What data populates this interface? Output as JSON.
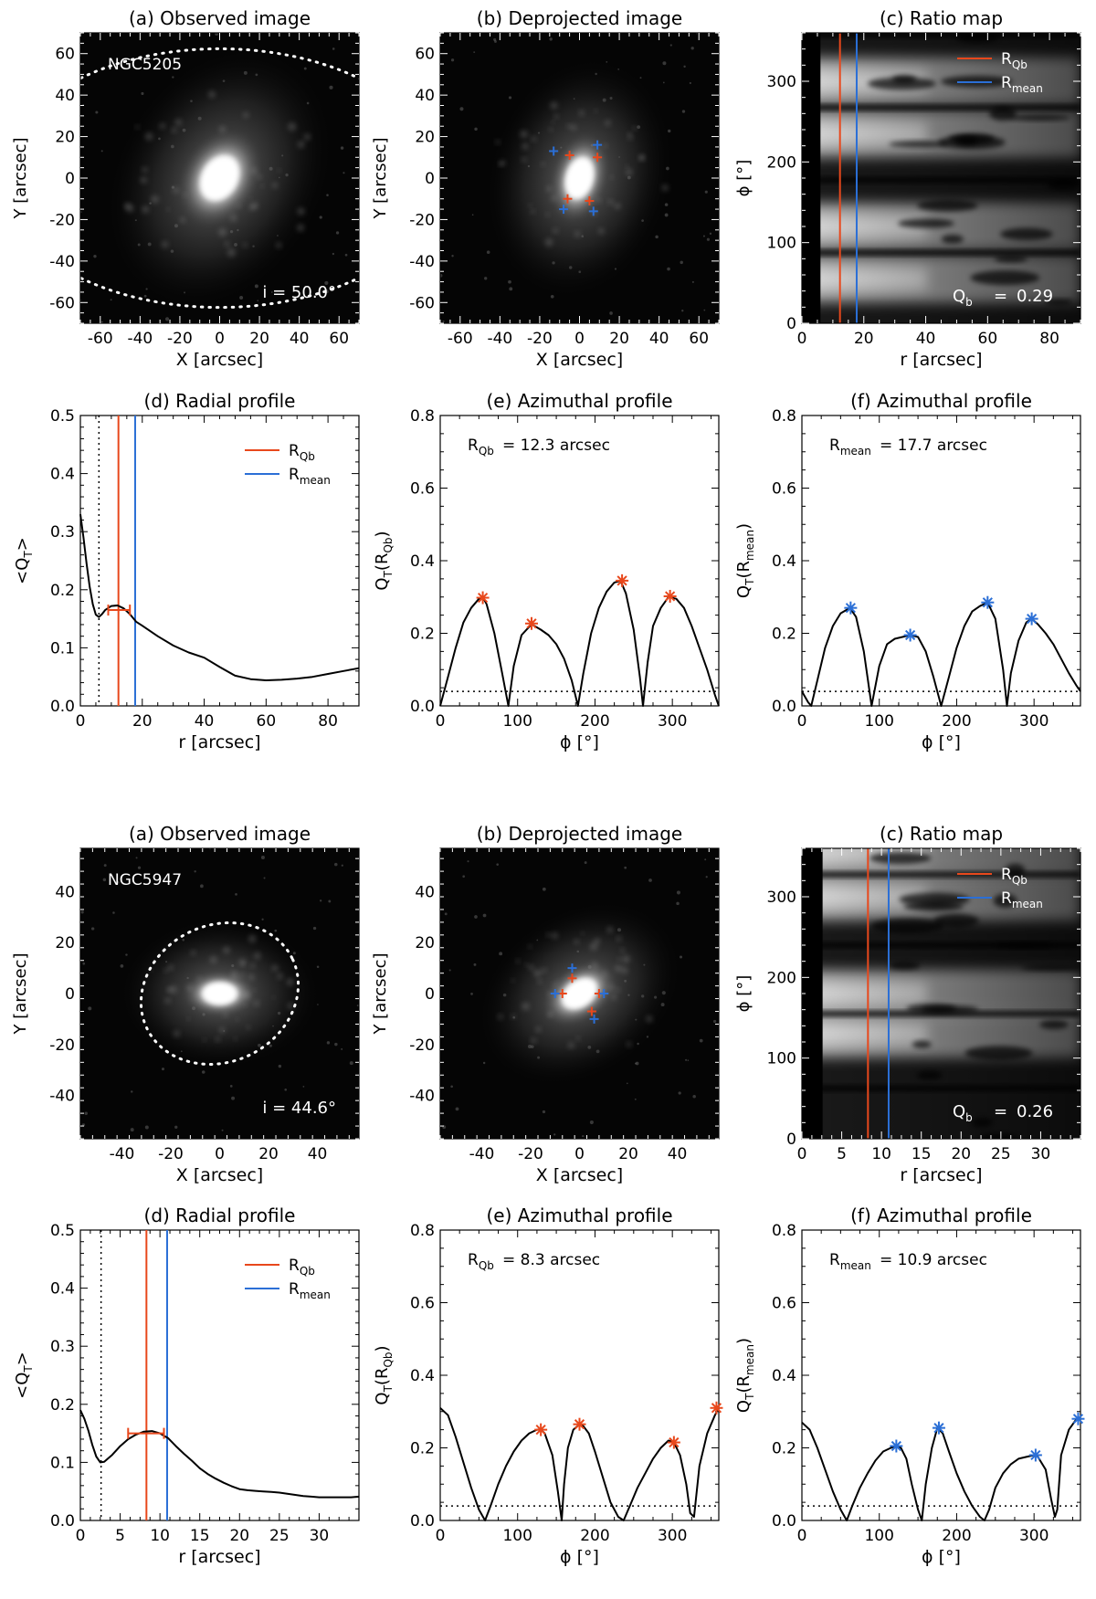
{
  "axis_labels": {
    "x_arcsec": "X [arcsec]",
    "y_arcsec": "Y [arcsec]",
    "r_arcsec": "r [arcsec]",
    "phi_deg": "ϕ [°]",
    "phi": "ϕ",
    "deg_bracket": "[°]",
    "qt_mean": "<Q_T>",
    "qt_rqb": "Q_T(R_Qb)",
    "qt_rmean": "Q_T(R_mean)"
  },
  "legend": {
    "rqb": "R_Qb",
    "rmean": "R_mean"
  },
  "colors": {
    "rqb": "#e8481c",
    "rmean": "#2b6fd6"
  },
  "chart_data": [
    {
      "group": 0,
      "galaxy": "NGC5205",
      "inclination_text": "i =  50.0°",
      "panels": {
        "a": {
          "type": "image",
          "title": "(a) Observed image",
          "xlim": [
            -70,
            70
          ],
          "ylim": [
            -70,
            70
          ],
          "xticks": [
            -60,
            -40,
            -20,
            0,
            20,
            40,
            60
          ],
          "yticks": [
            -60,
            -40,
            -20,
            0,
            20,
            40,
            60
          ],
          "ellipse": {
            "a": 110,
            "b": 65,
            "angle": 0
          },
          "galaxy_shape": {
            "size": 34,
            "elong": 1.35,
            "angle": -60
          }
        },
        "b": {
          "type": "image",
          "title": "(b) Deprojected image",
          "xlim": [
            -70,
            70
          ],
          "ylim": [
            -70,
            70
          ],
          "xticks": [
            -60,
            -40,
            -20,
            0,
            20,
            40,
            60
          ],
          "yticks": [
            -60,
            -40,
            -20,
            0,
            20,
            40,
            60
          ],
          "galaxy_shape": {
            "size": 30,
            "elong": 1.6,
            "angle": -75
          },
          "markers_rqb": [
            [
              -5,
              11
            ],
            [
              9,
              10
            ],
            [
              -6,
              -10
            ],
            [
              5,
              -11
            ]
          ],
          "markers_rmean": [
            [
              -13,
              13
            ],
            [
              9,
              16
            ],
            [
              -8,
              -15
            ],
            [
              7,
              -16
            ]
          ]
        },
        "c": {
          "type": "heatmap",
          "title": "(c) Ratio map",
          "xlim": [
            0,
            90
          ],
          "ylim": [
            0,
            360
          ],
          "xticks": [
            0,
            20,
            40,
            60,
            80
          ],
          "yticks": [
            0,
            100,
            200,
            300
          ],
          "mask_rmax": 6,
          "qb_label": "Q_b",
          "qb_value": "0.29",
          "rqb": 12.3,
          "rmean": 17.7,
          "bright_bands": [
            55,
            120,
            235,
            300
          ]
        },
        "d": {
          "type": "line",
          "title": "(d) Radial profile",
          "xlim": [
            0,
            90
          ],
          "ylim": [
            0,
            0.5
          ],
          "xticks": [
            0,
            20,
            40,
            60,
            80
          ],
          "yticks": [
            0.0,
            0.1,
            0.2,
            0.3,
            0.4,
            0.5
          ],
          "x": [
            0,
            1,
            2,
            3,
            4,
            5,
            6,
            7,
            8,
            10,
            12,
            14,
            16,
            18,
            20,
            25,
            30,
            35,
            40,
            45,
            50,
            55,
            60,
            65,
            70,
            75,
            80,
            85,
            90
          ],
          "y": [
            0.33,
            0.29,
            0.245,
            0.205,
            0.175,
            0.157,
            0.153,
            0.158,
            0.165,
            0.172,
            0.173,
            0.168,
            0.158,
            0.145,
            0.138,
            0.12,
            0.104,
            0.092,
            0.083,
            0.067,
            0.052,
            0.046,
            0.044,
            0.045,
            0.047,
            0.05,
            0.055,
            0.06,
            0.065
          ],
          "dotted_x": 6,
          "rqb": 12.3,
          "rmean": 17.7,
          "errorbar": {
            "center": 12.3,
            "lo": 9,
            "hi": 16,
            "y": 0.165
          }
        },
        "e": {
          "type": "line",
          "title": "(e) Azimuthal profile",
          "annotation_label": "R_Qb",
          "annotation_value": "= 12.3 arcsec",
          "xlim": [
            0,
            360
          ],
          "ylim": [
            0,
            0.8
          ],
          "xticks": [
            0,
            100,
            200,
            300
          ],
          "yticks": [
            0.0,
            0.2,
            0.4,
            0.6,
            0.8
          ],
          "threshold": 0.04,
          "x": [
            0,
            10,
            20,
            30,
            40,
            50,
            55,
            60,
            70,
            80,
            88,
            95,
            105,
            118,
            130,
            140,
            150,
            160,
            170,
            178,
            185,
            195,
            205,
            215,
            225,
            233,
            240,
            250,
            258,
            262,
            268,
            275,
            285,
            295,
            305,
            315,
            325,
            335,
            345,
            355,
            360
          ],
          "y": [
            0.0,
            0.08,
            0.16,
            0.23,
            0.27,
            0.295,
            0.3,
            0.28,
            0.2,
            0.09,
            0.0,
            0.11,
            0.195,
            0.225,
            0.21,
            0.195,
            0.17,
            0.13,
            0.07,
            0.0,
            0.09,
            0.2,
            0.27,
            0.315,
            0.34,
            0.345,
            0.31,
            0.21,
            0.08,
            0.0,
            0.12,
            0.22,
            0.27,
            0.3,
            0.295,
            0.27,
            0.22,
            0.16,
            0.1,
            0.03,
            0.0
          ],
          "peaks": [
            [
              55,
              0.298
            ],
            [
              118,
              0.227
            ],
            [
              235,
              0.345
            ],
            [
              297,
              0.302
            ]
          ],
          "marker_color": "rqb"
        },
        "f": {
          "type": "line",
          "title": "(f) Azimuthal profile",
          "annotation_label": "R_mean",
          "annotation_value": "= 17.7 arcsec",
          "xlim": [
            0,
            360
          ],
          "ylim": [
            0,
            0.8
          ],
          "xticks": [
            0,
            100,
            200,
            300
          ],
          "yticks": [
            0.0,
            0.2,
            0.4,
            0.6,
            0.8
          ],
          "threshold": 0.04,
          "x": [
            0,
            8,
            12,
            20,
            30,
            40,
            50,
            62,
            70,
            80,
            90,
            100,
            110,
            120,
            130,
            140,
            150,
            160,
            170,
            180,
            190,
            200,
            210,
            220,
            230,
            240,
            250,
            260,
            265,
            270,
            280,
            290,
            297,
            305,
            315,
            325,
            335,
            345,
            355,
            360
          ],
          "y": [
            0.04,
            0.01,
            0.0,
            0.07,
            0.16,
            0.22,
            0.255,
            0.27,
            0.245,
            0.15,
            0.0,
            0.11,
            0.17,
            0.185,
            0.19,
            0.195,
            0.19,
            0.15,
            0.08,
            0.0,
            0.08,
            0.16,
            0.22,
            0.26,
            0.275,
            0.285,
            0.24,
            0.1,
            0.0,
            0.09,
            0.18,
            0.23,
            0.24,
            0.225,
            0.2,
            0.17,
            0.13,
            0.09,
            0.055,
            0.04
          ],
          "peaks": [
            [
              63,
              0.27
            ],
            [
              140,
              0.195
            ],
            [
              240,
              0.285
            ],
            [
              297,
              0.24
            ]
          ],
          "marker_color": "rmean"
        }
      }
    },
    {
      "group": 1,
      "galaxy": "NGC5947",
      "inclination_text": "i =  44.6°",
      "panels": {
        "a": {
          "type": "image",
          "title": "(a) Observed image",
          "xlim": [
            -57,
            57
          ],
          "ylim": [
            -57,
            57
          ],
          "xticks": [
            -40,
            -20,
            0,
            20,
            40
          ],
          "yticks": [
            -40,
            -20,
            0,
            20,
            40
          ],
          "ellipse": {
            "a": 33,
            "b": 28,
            "angle": 25
          },
          "galaxy_shape": {
            "size": 20,
            "elong": 1.6,
            "angle": 0
          }
        },
        "b": {
          "type": "image",
          "title": "(b) Deprojected image",
          "xlim": [
            -57,
            57
          ],
          "ylim": [
            -57,
            57
          ],
          "xticks": [
            -40,
            -20,
            0,
            20,
            40
          ],
          "yticks": [
            -40,
            -20,
            0,
            20,
            40
          ],
          "galaxy_shape": {
            "size": 22,
            "elong": 1.5,
            "angle": -35
          },
          "markers_rqb": [
            [
              -3,
              6
            ],
            [
              8,
              0
            ],
            [
              -7,
              0
            ],
            [
              5,
              -7
            ]
          ],
          "markers_rmean": [
            [
              -3,
              10
            ],
            [
              10,
              0
            ],
            [
              -10,
              0
            ],
            [
              6,
              -10
            ]
          ]
        },
        "c": {
          "type": "heatmap",
          "title": "(c) Ratio map",
          "xlim": [
            0,
            35
          ],
          "ylim": [
            0,
            360
          ],
          "xticks": [
            0,
            5,
            10,
            15,
            20,
            25,
            30
          ],
          "yticks": [
            0,
            100,
            200,
            300
          ],
          "mask_rmax": 2.6,
          "qb_label": "Q_b",
          "qb_value": "0.26",
          "rqb": 8.3,
          "rmean": 10.9,
          "bright_bands": [
            130,
            180,
            300,
            355
          ]
        },
        "d": {
          "type": "line",
          "title": "(d) Radial profile",
          "xlim": [
            0,
            35
          ],
          "ylim": [
            0,
            0.5
          ],
          "xticks": [
            0,
            5,
            10,
            15,
            20,
            25,
            30
          ],
          "yticks": [
            0.0,
            0.1,
            0.2,
            0.3,
            0.4,
            0.5
          ],
          "x": [
            0,
            0.5,
            1,
            1.5,
            2,
            2.5,
            3,
            4,
            5,
            6,
            7,
            8,
            9,
            10,
            11,
            12,
            13,
            14,
            15,
            16,
            17,
            18,
            19,
            20,
            21,
            22,
            23,
            24,
            25,
            26,
            27,
            28,
            29,
            30,
            31,
            32,
            33,
            34,
            35
          ],
          "y": [
            0.19,
            0.175,
            0.155,
            0.13,
            0.11,
            0.1,
            0.101,
            0.113,
            0.128,
            0.14,
            0.148,
            0.153,
            0.154,
            0.15,
            0.142,
            0.128,
            0.115,
            0.103,
            0.09,
            0.08,
            0.072,
            0.065,
            0.059,
            0.054,
            0.052,
            0.051,
            0.05,
            0.049,
            0.048,
            0.046,
            0.044,
            0.042,
            0.041,
            0.04,
            0.04,
            0.04,
            0.04,
            0.04,
            0.041
          ],
          "dotted_x": 2.6,
          "rqb": 8.3,
          "rmean": 10.9,
          "errorbar": {
            "center": 8.3,
            "lo": 6,
            "hi": 10.5,
            "y": 0.15
          }
        },
        "e": {
          "type": "line",
          "title": "(e) Azimuthal profile",
          "annotation_label": "R_Qb",
          "annotation_value": "=  8.3 arcsec",
          "xlim": [
            0,
            360
          ],
          "ylim": [
            0,
            0.8
          ],
          "xticks": [
            0,
            100,
            200,
            300
          ],
          "yticks": [
            0.0,
            0.2,
            0.4,
            0.6,
            0.8
          ],
          "threshold": 0.04,
          "x": [
            0,
            10,
            20,
            30,
            40,
            50,
            58,
            65,
            75,
            85,
            95,
            105,
            115,
            125,
            130,
            135,
            145,
            152,
            157,
            160,
            165,
            172,
            180,
            185,
            192,
            200,
            210,
            220,
            230,
            237,
            245,
            255,
            265,
            275,
            285,
            295,
            302,
            310,
            318,
            323,
            328,
            335,
            345,
            355,
            360
          ],
          "y": [
            0.31,
            0.29,
            0.23,
            0.16,
            0.09,
            0.03,
            0.0,
            0.04,
            0.1,
            0.15,
            0.19,
            0.22,
            0.24,
            0.25,
            0.25,
            0.24,
            0.18,
            0.08,
            0.0,
            0.1,
            0.2,
            0.25,
            0.265,
            0.26,
            0.24,
            0.19,
            0.12,
            0.05,
            0.01,
            0.0,
            0.04,
            0.09,
            0.13,
            0.17,
            0.2,
            0.22,
            0.215,
            0.18,
            0.1,
            0.02,
            0.01,
            0.15,
            0.24,
            0.29,
            0.31
          ],
          "peaks": [
            [
              130,
              0.25
            ],
            [
              180,
              0.265
            ],
            [
              302,
              0.215
            ],
            [
              357,
              0.31
            ]
          ],
          "marker_color": "rqb"
        },
        "f": {
          "type": "line",
          "title": "(f) Azimuthal profile",
          "annotation_label": "R_mean",
          "annotation_value": "= 10.9 arcsec",
          "xlim": [
            0,
            360
          ],
          "ylim": [
            0,
            0.8
          ],
          "xticks": [
            0,
            100,
            200,
            300
          ],
          "yticks": [
            0.0,
            0.2,
            0.4,
            0.6,
            0.8
          ],
          "threshold": 0.04,
          "x": [
            0,
            10,
            20,
            30,
            40,
            50,
            58,
            65,
            75,
            85,
            95,
            105,
            115,
            122,
            128,
            135,
            142,
            150,
            155,
            160,
            168,
            175,
            182,
            190,
            200,
            210,
            220,
            230,
            236,
            242,
            250,
            260,
            270,
            280,
            290,
            300,
            305,
            315,
            322,
            327,
            330,
            335,
            345,
            355,
            360
          ],
          "y": [
            0.27,
            0.25,
            0.2,
            0.14,
            0.08,
            0.03,
            0.0,
            0.04,
            0.09,
            0.13,
            0.165,
            0.19,
            0.2,
            0.205,
            0.2,
            0.17,
            0.1,
            0.03,
            0.0,
            0.1,
            0.2,
            0.255,
            0.24,
            0.19,
            0.13,
            0.08,
            0.04,
            0.01,
            0.0,
            0.03,
            0.09,
            0.13,
            0.155,
            0.17,
            0.175,
            0.18,
            0.175,
            0.14,
            0.06,
            0.01,
            0.03,
            0.18,
            0.25,
            0.28,
            0.28
          ],
          "peaks": [
            [
              122,
              0.205
            ],
            [
              177,
              0.255
            ],
            [
              302,
              0.18
            ],
            [
              357,
              0.28
            ]
          ],
          "marker_color": "rmean"
        }
      }
    }
  ]
}
